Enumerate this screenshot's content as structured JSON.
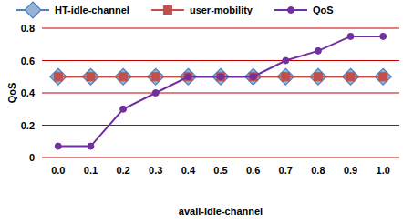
{
  "chart_data": {
    "type": "line",
    "x_label": "avail-idle-channel",
    "y_label": "QoS",
    "categories": [
      "0.0",
      "0.1",
      "0.2",
      "0.3",
      "0.4",
      "0.5",
      "0.6",
      "0.7",
      "0.8",
      "0.9",
      "1.0"
    ],
    "series": [
      {
        "name": "HT-idle-channel",
        "color": "#4f81bd",
        "marker": "diamond",
        "values": [
          0.5,
          0.5,
          0.5,
          0.5,
          0.5,
          0.5,
          0.5,
          0.5,
          0.5,
          0.5,
          0.5
        ]
      },
      {
        "name": "user-mobility",
        "color": "#c0504d",
        "marker": "square",
        "values": [
          0.5,
          0.5,
          0.5,
          0.5,
          0.5,
          0.5,
          0.5,
          0.5,
          0.5,
          0.5,
          0.5
        ]
      },
      {
        "name": "QoS",
        "color": "#7030a0",
        "marker": "circle",
        "values": [
          0.07,
          0.07,
          0.3,
          0.4,
          0.5,
          0.5,
          0.5,
          0.6,
          0.66,
          0.75,
          0.75
        ]
      }
    ],
    "ylim": [
      0,
      0.8
    ],
    "yticks": [
      0,
      0.2,
      0.4,
      0.6,
      0.8
    ],
    "grid": true,
    "legend": "top"
  }
}
